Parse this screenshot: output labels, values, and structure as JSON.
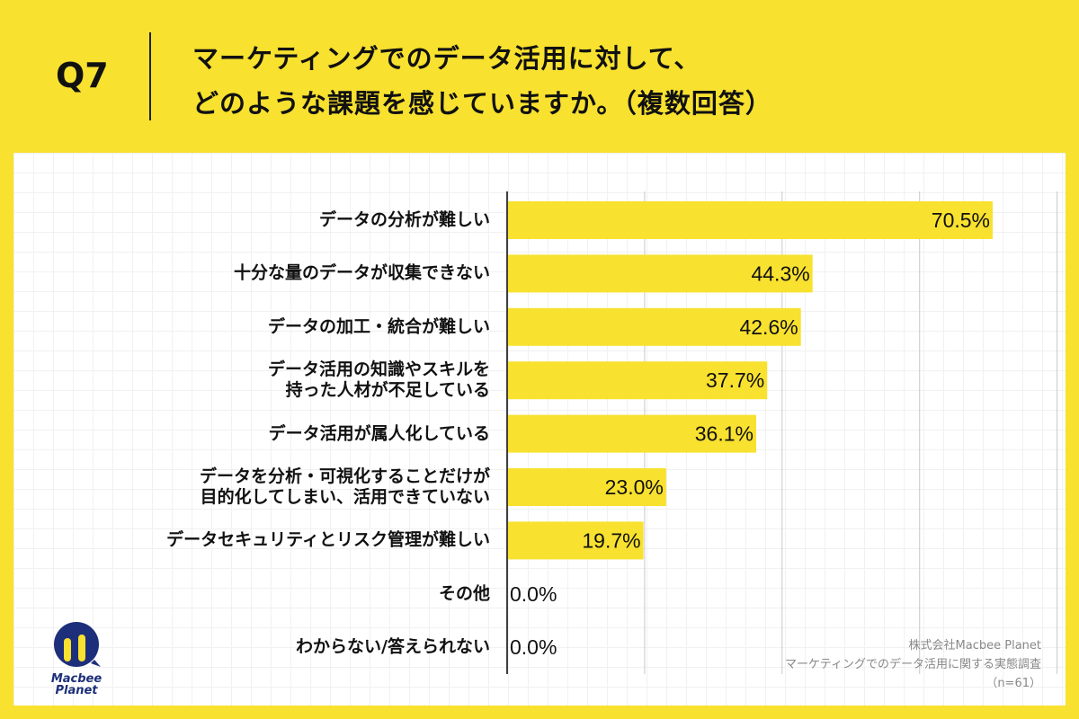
{
  "header": {
    "question": "Q7",
    "title": "マーケティングでのデータ活用に対して、\nどのような課題を感じていますか。（複数回答）"
  },
  "chart_data": {
    "type": "bar",
    "orientation": "horizontal",
    "categories": [
      "データの分析が難しい",
      "十分な量のデータが収集できない",
      "データの加工・統合が難しい",
      "データ活用の知識やスキルを\n持った人材が不足している",
      "データ活用が属人化している",
      "データを分析・可視化することだけが\n目的化してしまい、活用できていない",
      "データセキュリティとリスク管理が難しい",
      "その他",
      "わからない/答えられない"
    ],
    "values": [
      70.5,
      44.3,
      42.6,
      37.7,
      36.1,
      23.0,
      19.7,
      0.0,
      0.0
    ],
    "data_labels": [
      "70.5%",
      "44.3%",
      "42.6%",
      "37.7%",
      "36.1%",
      "23.0%",
      "19.7%",
      "0.0%",
      "0.0%"
    ],
    "xlim": [
      0,
      80
    ],
    "gridlines": [
      0,
      20,
      40,
      60,
      80
    ],
    "grid": true,
    "bar_color": "#f8e12f"
  },
  "logo": {
    "text": "Macbee\nPlanet",
    "colors": {
      "navy": "#1d2f7a",
      "yellow": "#f8e12f"
    }
  },
  "credit": {
    "company": "株式会社Macbee Planet",
    "survey": "マーケティングでのデータ活用に関する実態調査",
    "sample": "（n=61）"
  }
}
